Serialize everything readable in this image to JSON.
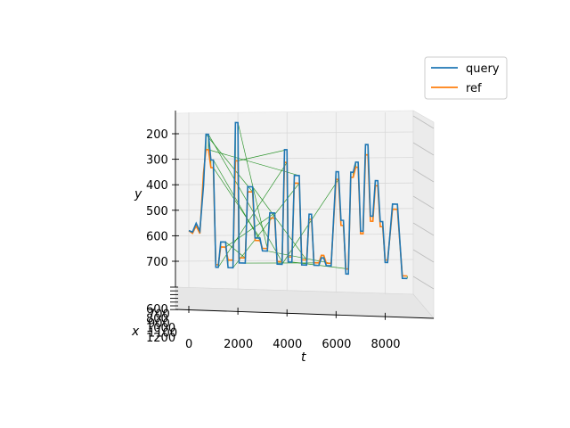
{
  "chart_data": {
    "type": "line",
    "projection": "3d",
    "axes": {
      "t": {
        "label": "t",
        "ticks": [
          "0",
          "2000",
          "4000",
          "6000",
          "8000"
        ],
        "range": [
          0,
          9500
        ]
      },
      "y": {
        "label": "y",
        "ticks": [
          "200",
          "300",
          "400",
          "500",
          "600",
          "700"
        ],
        "range": [
          180,
          800
        ],
        "inverted": true
      },
      "x": {
        "label": "x",
        "ticks": [
          "600",
          "700",
          "800",
          "900",
          "1000",
          "1100",
          "1200"
        ]
      }
    },
    "legend": {
      "position": "top-right",
      "entries": [
        "query",
        "ref"
      ]
    },
    "colors": {
      "query": "#1f77b4",
      "ref": "#ff7f0e",
      "match": "#008000"
    },
    "series": [
      {
        "name": "query",
        "points": [
          [
            0,
            580
          ],
          [
            150,
            585
          ],
          [
            300,
            550
          ],
          [
            450,
            580
          ],
          [
            600,
            400
          ],
          [
            700,
            200
          ],
          [
            800,
            200
          ],
          [
            900,
            300
          ],
          [
            1000,
            300
          ],
          [
            1100,
            720
          ],
          [
            1200,
            720
          ],
          [
            1300,
            620
          ],
          [
            1500,
            620
          ],
          [
            1600,
            720
          ],
          [
            1800,
            720
          ],
          [
            1900,
            150
          ],
          [
            2000,
            150
          ],
          [
            2050,
            700
          ],
          [
            2300,
            700
          ],
          [
            2400,
            400
          ],
          [
            2600,
            400
          ],
          [
            2700,
            600
          ],
          [
            2900,
            600
          ],
          [
            3000,
            650
          ],
          [
            3200,
            650
          ],
          [
            3300,
            500
          ],
          [
            3500,
            500
          ],
          [
            3600,
            700
          ],
          [
            3800,
            700
          ],
          [
            3900,
            250
          ],
          [
            4000,
            250
          ],
          [
            4050,
            690
          ],
          [
            4200,
            690
          ],
          [
            4300,
            350
          ],
          [
            4500,
            350
          ],
          [
            4600,
            700
          ],
          [
            4800,
            700
          ],
          [
            4900,
            500
          ],
          [
            5000,
            500
          ],
          [
            5100,
            700
          ],
          [
            5300,
            700
          ],
          [
            5400,
            670
          ],
          [
            5500,
            670
          ],
          [
            5600,
            700
          ],
          [
            5800,
            700
          ],
          [
            6000,
            330
          ],
          [
            6100,
            330
          ],
          [
            6200,
            520
          ],
          [
            6300,
            520
          ],
          [
            6400,
            730
          ],
          [
            6500,
            730
          ],
          [
            6600,
            330
          ],
          [
            6700,
            330
          ],
          [
            6800,
            290
          ],
          [
            6900,
            290
          ],
          [
            7000,
            560
          ],
          [
            7100,
            560
          ],
          [
            7200,
            220
          ],
          [
            7300,
            220
          ],
          [
            7400,
            500
          ],
          [
            7500,
            500
          ],
          [
            7600,
            360
          ],
          [
            7700,
            360
          ],
          [
            7800,
            520
          ],
          [
            7900,
            520
          ],
          [
            8000,
            680
          ],
          [
            8100,
            680
          ],
          [
            8300,
            450
          ],
          [
            8500,
            450
          ],
          [
            8700,
            740
          ],
          [
            8900,
            740
          ]
        ]
      },
      {
        "name": "ref",
        "points": [
          [
            0,
            580
          ],
          [
            150,
            590
          ],
          [
            300,
            560
          ],
          [
            450,
            590
          ],
          [
            600,
            350
          ],
          [
            700,
            260
          ],
          [
            800,
            260
          ],
          [
            900,
            330
          ],
          [
            1000,
            330
          ],
          [
            1100,
            710
          ],
          [
            1200,
            710
          ],
          [
            1300,
            640
          ],
          [
            1500,
            640
          ],
          [
            1600,
            690
          ],
          [
            1800,
            690
          ],
          [
            1900,
            300
          ],
          [
            2000,
            300
          ],
          [
            2050,
            680
          ],
          [
            2300,
            680
          ],
          [
            2400,
            420
          ],
          [
            2600,
            420
          ],
          [
            2700,
            610
          ],
          [
            2900,
            610
          ],
          [
            3000,
            640
          ],
          [
            3200,
            640
          ],
          [
            3300,
            520
          ],
          [
            3500,
            520
          ],
          [
            3600,
            690
          ],
          [
            3800,
            690
          ],
          [
            3900,
            300
          ],
          [
            4000,
            300
          ],
          [
            4050,
            670
          ],
          [
            4200,
            670
          ],
          [
            4300,
            380
          ],
          [
            4500,
            380
          ],
          [
            4600,
            680
          ],
          [
            4800,
            680
          ],
          [
            4900,
            520
          ],
          [
            5000,
            520
          ],
          [
            5100,
            690
          ],
          [
            5300,
            690
          ],
          [
            5400,
            660
          ],
          [
            5500,
            660
          ],
          [
            5600,
            690
          ],
          [
            5800,
            690
          ],
          [
            6000,
            360
          ],
          [
            6100,
            360
          ],
          [
            6200,
            540
          ],
          [
            6300,
            540
          ],
          [
            6400,
            710
          ],
          [
            6500,
            710
          ],
          [
            6600,
            350
          ],
          [
            6700,
            350
          ],
          [
            6800,
            310
          ],
          [
            6900,
            310
          ],
          [
            7000,
            570
          ],
          [
            7100,
            570
          ],
          [
            7200,
            260
          ],
          [
            7300,
            260
          ],
          [
            7400,
            520
          ],
          [
            7500,
            520
          ],
          [
            7600,
            380
          ],
          [
            7700,
            380
          ],
          [
            7800,
            540
          ],
          [
            7900,
            540
          ],
          [
            8000,
            670
          ],
          [
            8100,
            670
          ],
          [
            8300,
            470
          ],
          [
            8500,
            470
          ],
          [
            8700,
            730
          ],
          [
            8900,
            730
          ]
        ]
      }
    ]
  }
}
